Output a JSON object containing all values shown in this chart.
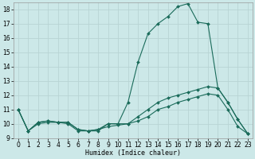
{
  "xlabel": "Humidex (Indice chaleur)",
  "bg_color": "#cce8e8",
  "grid_color": "#b8d4d4",
  "line_color": "#1a6b5a",
  "xlim": [
    -0.5,
    23.5
  ],
  "ylim": [
    9,
    18.5
  ],
  "yticks": [
    9,
    10,
    11,
    12,
    13,
    14,
    15,
    16,
    17,
    18
  ],
  "xticks": [
    0,
    1,
    2,
    3,
    4,
    5,
    6,
    7,
    8,
    9,
    10,
    11,
    12,
    13,
    14,
    15,
    16,
    17,
    18,
    19,
    20,
    21,
    22,
    23
  ],
  "series1_y": [
    11.0,
    9.5,
    10.0,
    10.1,
    10.1,
    10.0,
    9.5,
    9.5,
    9.5,
    10.0,
    10.0,
    11.5,
    14.3,
    16.3,
    17.0,
    17.5,
    18.2,
    18.4,
    17.1,
    17.0,
    12.5,
    11.5,
    10.3,
    9.3
  ],
  "series2_y": [
    11.0,
    9.5,
    10.1,
    10.2,
    10.1,
    10.1,
    9.6,
    9.5,
    9.6,
    10.0,
    10.0,
    10.0,
    10.5,
    11.0,
    11.5,
    11.8,
    12.0,
    12.2,
    12.4,
    12.6,
    12.5,
    11.5,
    10.3,
    9.3
  ],
  "series3_y": [
    11.0,
    9.5,
    10.1,
    10.2,
    10.1,
    10.1,
    9.6,
    9.5,
    9.6,
    9.8,
    9.9,
    10.0,
    10.2,
    10.5,
    11.0,
    11.2,
    11.5,
    11.7,
    11.9,
    12.1,
    12.0,
    11.0,
    9.8,
    9.3
  ],
  "xlabel_fontsize": 6.0,
  "tick_fontsize": 5.5
}
